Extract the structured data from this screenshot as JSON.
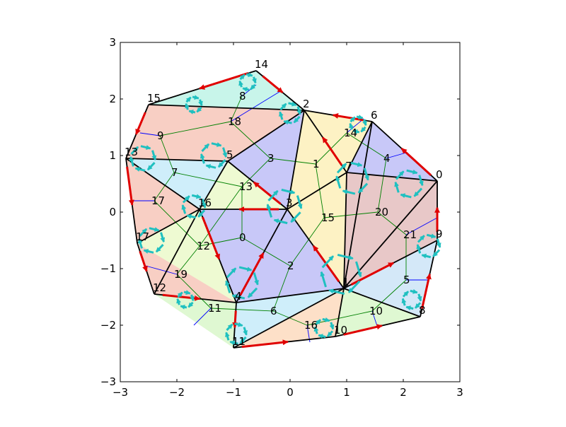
{
  "chart_data": {
    "type": "mesh",
    "title": "",
    "xlabel": "",
    "ylabel": "",
    "xlim": [
      -3,
      3
    ],
    "ylim": [
      -3,
      3
    ],
    "x_ticks": [
      -3,
      -2,
      -1,
      0,
      1,
      2,
      3
    ],
    "y_ticks": [
      -3,
      -2,
      -1,
      0,
      1,
      2,
      3
    ],
    "tick_labels_x": [
      "−3",
      "−2",
      "−1",
      "0",
      "1",
      "2",
      "3"
    ],
    "tick_labels_y": [
      "−3",
      "−2",
      "−1",
      "0",
      "1",
      "2",
      "3"
    ],
    "grid": false,
    "colors": {
      "edge": "#000000",
      "halfedge_boundary": "#e00000",
      "halfedge_cycle": "#20c0c0",
      "dual_edge": "#008000",
      "dual_boundary": "#0000ff",
      "face_fills": [
        "#c8f5ea",
        "#f8cfc4",
        "#c8c8f8",
        "#fdf2c4",
        "#eefad2",
        "#cfeefa",
        "#fde0c8",
        "#e8c8c8",
        "#d4e8f8",
        "#dff8d2"
      ]
    },
    "vertices": [
      {
        "label": "0",
        "x": 2.6,
        "y": 0.55
      },
      {
        "label": "1",
        "x": 0.95,
        "y": -1.35
      },
      {
        "label": "2",
        "x": 0.25,
        "y": 1.8
      },
      {
        "label": "3",
        "x": -0.05,
        "y": 0.05
      },
      {
        "label": "4",
        "x": -0.95,
        "y": -1.6
      },
      {
        "label": "5",
        "x": -1.1,
        "y": 0.9
      },
      {
        "label": "6",
        "x": 1.45,
        "y": 1.6
      },
      {
        "label": "7",
        "x": 1.0,
        "y": 0.7
      },
      {
        "label": "8",
        "x": 2.3,
        "y": -1.85
      },
      {
        "label": "9",
        "x": 2.6,
        "y": -0.5
      },
      {
        "label": "10",
        "x": 0.8,
        "y": -2.2
      },
      {
        "label": "11",
        "x": -1.0,
        "y": -2.4
      },
      {
        "label": "12",
        "x": -2.4,
        "y": -1.45
      },
      {
        "label": "13",
        "x": -2.9,
        "y": 0.95
      },
      {
        "label": "14",
        "x": -0.6,
        "y": 2.5
      },
      {
        "label": "15",
        "x": -2.5,
        "y": 1.9
      },
      {
        "label": "16",
        "x": -1.6,
        "y": 0.05
      },
      {
        "label": "17",
        "x": -2.7,
        "y": -0.55
      }
    ],
    "edges": [
      [
        "14",
        "2"
      ],
      [
        "2",
        "6"
      ],
      [
        "6",
        "0"
      ],
      [
        "0",
        "9"
      ],
      [
        "9",
        "8"
      ],
      [
        "8",
        "10"
      ],
      [
        "10",
        "11"
      ],
      [
        "11",
        "4"
      ],
      [
        "4",
        "12"
      ],
      [
        "12",
        "17"
      ],
      [
        "17",
        "13"
      ],
      [
        "13",
        "15"
      ],
      [
        "15",
        "14"
      ],
      [
        "15",
        "2"
      ],
      [
        "13",
        "5"
      ],
      [
        "5",
        "2"
      ],
      [
        "5",
        "16"
      ],
      [
        "16",
        "13"
      ],
      [
        "16",
        "3"
      ],
      [
        "3",
        "2"
      ],
      [
        "2",
        "7"
      ],
      [
        "7",
        "3"
      ],
      [
        "6",
        "7"
      ],
      [
        "7",
        "1"
      ],
      [
        "1",
        "3"
      ],
      [
        "3",
        "4"
      ],
      [
        "4",
        "16"
      ],
      [
        "16",
        "17"
      ],
      [
        "1",
        "0"
      ],
      [
        "1",
        "9"
      ],
      [
        "1",
        "8"
      ],
      [
        "1",
        "10"
      ],
      [
        "1",
        "11"
      ],
      [
        "1",
        "6"
      ],
      [
        "4",
        "1"
      ],
      [
        "3",
        "5"
      ],
      [
        "0",
        "7"
      ],
      [
        "12",
        "16"
      ]
    ],
    "faces": [
      {
        "v": [
          "14",
          "2",
          "15"
        ],
        "fill": 0
      },
      {
        "v": [
          "15",
          "2",
          "5",
          "13"
        ],
        "fill": 1
      },
      {
        "v": [
          "5",
          "2",
          "3"
        ],
        "fill": 2
      },
      {
        "v": [
          "2",
          "7",
          "3"
        ],
        "fill": 3
      },
      {
        "v": [
          "2",
          "6",
          "7"
        ],
        "fill": 3
      },
      {
        "v": [
          "6",
          "0",
          "7"
        ],
        "fill": 2
      },
      {
        "v": [
          "13",
          "5",
          "16"
        ],
        "fill": 5
      },
      {
        "v": [
          "5",
          "3",
          "16"
        ],
        "fill": 4
      },
      {
        "v": [
          "13",
          "16",
          "17"
        ],
        "fill": 1
      },
      {
        "v": [
          "16",
          "3",
          "4"
        ],
        "fill": 2
      },
      {
        "v": [
          "3",
          "7",
          "1"
        ],
        "fill": 3
      },
      {
        "v": [
          "3",
          "1",
          "4"
        ],
        "fill": 2
      },
      {
        "v": [
          "7",
          "0",
          "1"
        ],
        "fill": 7
      },
      {
        "v": [
          "0",
          "9",
          "1"
        ],
        "fill": 7
      },
      {
        "v": [
          "1",
          "9",
          "8"
        ],
        "fill": 8
      },
      {
        "v": [
          "1",
          "8",
          "10"
        ],
        "fill": 9
      },
      {
        "v": [
          "1",
          "10",
          "11"
        ],
        "fill": 6
      },
      {
        "v": [
          "4",
          "1",
          "11"
        ],
        "fill": 5
      },
      {
        "v": [
          "16",
          "4",
          "12",
          "17"
        ],
        "fill": 4
      },
      {
        "v": [
          "17",
          "12",
          "4"
        ],
        "fill": 1
      },
      {
        "v": [
          "12",
          "11",
          "4"
        ],
        "fill": 9
      }
    ],
    "dual_nodes": [
      {
        "label": "0",
        "x": -0.85,
        "y": -0.45
      },
      {
        "label": "1",
        "x": 0.45,
        "y": 0.85
      },
      {
        "label": "2",
        "x": 0.0,
        "y": -0.95
      },
      {
        "label": "3",
        "x": -0.35,
        "y": 0.95
      },
      {
        "label": "4",
        "x": 1.7,
        "y": 0.95
      },
      {
        "label": "5",
        "x": 2.05,
        "y": -1.2
      },
      {
        "label": "6",
        "x": -0.3,
        "y": -1.75
      },
      {
        "label": "7",
        "x": -2.05,
        "y": 0.7
      },
      {
        "label": "8",
        "x": -0.85,
        "y": 2.05
      },
      {
        "label": "9",
        "x": -2.3,
        "y": 1.35
      },
      {
        "label": "10",
        "x": 1.45,
        "y": -1.75
      },
      {
        "label": "11",
        "x": -1.4,
        "y": -1.7
      },
      {
        "label": "12",
        "x": -1.6,
        "y": -0.6
      },
      {
        "label": "13",
        "x": -0.85,
        "y": 0.45
      },
      {
        "label": "14",
        "x": 1.0,
        "y": 1.4
      },
      {
        "label": "15",
        "x": 0.6,
        "y": -0.1
      },
      {
        "label": "16",
        "x": 0.3,
        "y": -2.0
      },
      {
        "label": "17",
        "x": -2.4,
        "y": 0.2
      },
      {
        "label": "18",
        "x": -1.05,
        "y": 1.6
      },
      {
        "label": "19",
        "x": -2.0,
        "y": -1.1
      },
      {
        "label": "20",
        "x": 1.55,
        "y": 0.0
      },
      {
        "label": "21",
        "x": 2.05,
        "y": -0.4
      }
    ],
    "dual_edges": [
      [
        "8",
        "18"
      ],
      [
        "18",
        "9"
      ],
      [
        "9",
        "7"
      ],
      [
        "7",
        "17"
      ],
      [
        "17",
        "12"
      ],
      [
        "12",
        "0"
      ],
      [
        "0",
        "13"
      ],
      [
        "13",
        "3"
      ],
      [
        "3",
        "18"
      ],
      [
        "3",
        "1"
      ],
      [
        "1",
        "14"
      ],
      [
        "14",
        "4"
      ],
      [
        "4",
        "20"
      ],
      [
        "20",
        "21"
      ],
      [
        "21",
        "5"
      ],
      [
        "5",
        "10"
      ],
      [
        "10",
        "16"
      ],
      [
        "16",
        "6"
      ],
      [
        "6",
        "2"
      ],
      [
        "2",
        "0"
      ],
      [
        "2",
        "15"
      ],
      [
        "15",
        "1"
      ],
      [
        "15",
        "20"
      ],
      [
        "6",
        "11"
      ],
      [
        "11",
        "19"
      ],
      [
        "19",
        "12"
      ],
      [
        "13",
        "7"
      ],
      [
        "12",
        "13"
      ]
    ],
    "dual_boundary_edges": [
      [
        "8",
        "8b"
      ],
      [
        "9",
        "9b"
      ],
      [
        "17",
        "17b"
      ],
      [
        "19",
        "19b"
      ],
      [
        "11",
        "11b"
      ],
      [
        "16",
        "16b"
      ],
      [
        "10",
        "10b"
      ],
      [
        "5",
        "5b"
      ],
      [
        "21",
        "21b"
      ],
      [
        "4",
        "4b"
      ],
      [
        "14",
        "14b"
      ],
      [
        "18",
        "18b"
      ]
    ],
    "dual_boundary_ends": {
      "8b": [
        -0.6,
        2.25
      ],
      "9b": [
        -2.65,
        1.4
      ],
      "17b": [
        -2.8,
        0.2
      ],
      "19b": [
        -2.55,
        -0.95
      ],
      "11b": [
        -1.7,
        -2.0
      ],
      "16b": [
        0.35,
        -2.3
      ],
      "10b": [
        1.55,
        -2.05
      ],
      "5b": [
        2.45,
        -1.2
      ],
      "21b": [
        2.6,
        -0.1
      ],
      "4b": [
        2.05,
        1.05
      ],
      "14b": [
        1.3,
        1.65
      ],
      "18b": [
        -0.15,
        2.15
      ]
    },
    "boundary_halfedges": [
      [
        "14",
        "2"
      ],
      [
        "6",
        "2"
      ],
      [
        "0",
        "6"
      ],
      [
        "9",
        "0"
      ],
      [
        "8",
        "9"
      ],
      [
        "10",
        "8"
      ],
      [
        "11",
        "10"
      ],
      [
        "4",
        "11"
      ],
      [
        "12",
        "4"
      ],
      [
        "17",
        "12"
      ],
      [
        "13",
        "17"
      ],
      [
        "15",
        "13"
      ],
      [
        "14",
        "15"
      ],
      [
        "3",
        "16"
      ],
      [
        "16",
        "4"
      ],
      [
        "3",
        "5"
      ],
      [
        "7",
        "2"
      ],
      [
        "1",
        "3"
      ],
      [
        "4",
        "3"
      ],
      [
        "1",
        "9"
      ]
    ],
    "cycles": [
      {
        "x": -0.75,
        "y": 2.3,
        "r": 0.14
      },
      {
        "x": -1.7,
        "y": 1.9,
        "r": 0.14
      },
      {
        "x": 0.0,
        "y": 1.75,
        "r": 0.18
      },
      {
        "x": -1.35,
        "y": 1.0,
        "r": 0.22
      },
      {
        "x": -2.6,
        "y": 0.95,
        "r": 0.22
      },
      {
        "x": 1.2,
        "y": 1.55,
        "r": 0.14
      },
      {
        "x": 1.1,
        "y": 0.6,
        "r": 0.28
      },
      {
        "x": 2.1,
        "y": 0.5,
        "r": 0.24
      },
      {
        "x": -1.7,
        "y": 0.1,
        "r": 0.2
      },
      {
        "x": -0.1,
        "y": 0.1,
        "r": 0.3
      },
      {
        "x": 2.45,
        "y": -0.6,
        "r": 0.2
      },
      {
        "x": -2.45,
        "y": -0.5,
        "r": 0.22
      },
      {
        "x": -0.85,
        "y": -1.25,
        "r": 0.28
      },
      {
        "x": 0.9,
        "y": -1.1,
        "r": 0.35
      },
      {
        "x": 2.15,
        "y": -1.55,
        "r": 0.16
      },
      {
        "x": -1.85,
        "y": -1.55,
        "r": 0.14
      },
      {
        "x": -0.95,
        "y": -2.15,
        "r": 0.18
      },
      {
        "x": 0.6,
        "y": -2.05,
        "r": 0.16
      }
    ]
  }
}
